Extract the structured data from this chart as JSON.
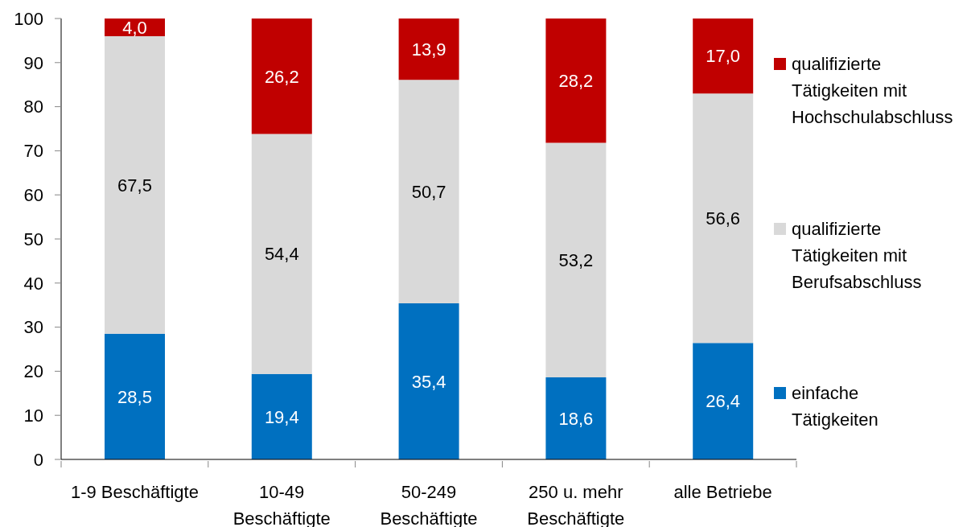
{
  "chart_data": {
    "type": "bar",
    "stacked": true,
    "categories": [
      "1-9 Beschäftigte",
      "10-49 Beschäftigte",
      "50-249 Beschäftigte",
      "250 u. mehr Beschäftigte",
      "alle Betriebe"
    ],
    "series": [
      {
        "name": "einfache Tätigkeiten",
        "color": "#0070c0",
        "values": [
          28.5,
          19.4,
          35.4,
          18.6,
          26.4
        ],
        "value_labels": [
          "28,5",
          "19,4",
          "35,4",
          "18,6",
          "26,4"
        ]
      },
      {
        "name": "qualifizierte Tätigkeiten mit Berufsabschluss",
        "color": "#d9d9d9",
        "values": [
          67.5,
          54.4,
          50.7,
          53.2,
          56.6
        ],
        "value_labels": [
          "67,5",
          "54,4",
          "50,7",
          "53,2",
          "56,6"
        ]
      },
      {
        "name": "qualifizierte Tätigkeiten mit Hochschulabschluss",
        "color": "#c00000",
        "values": [
          4.0,
          26.2,
          13.9,
          28.2,
          17.0
        ],
        "value_labels": [
          "4,0",
          "26,2",
          "13,9",
          "28,2",
          "17,0"
        ]
      }
    ],
    "ylim": [
      0,
      100
    ],
    "yticks": [
      0,
      10,
      20,
      30,
      40,
      50,
      60,
      70,
      80,
      90,
      100
    ],
    "legend": "right"
  }
}
